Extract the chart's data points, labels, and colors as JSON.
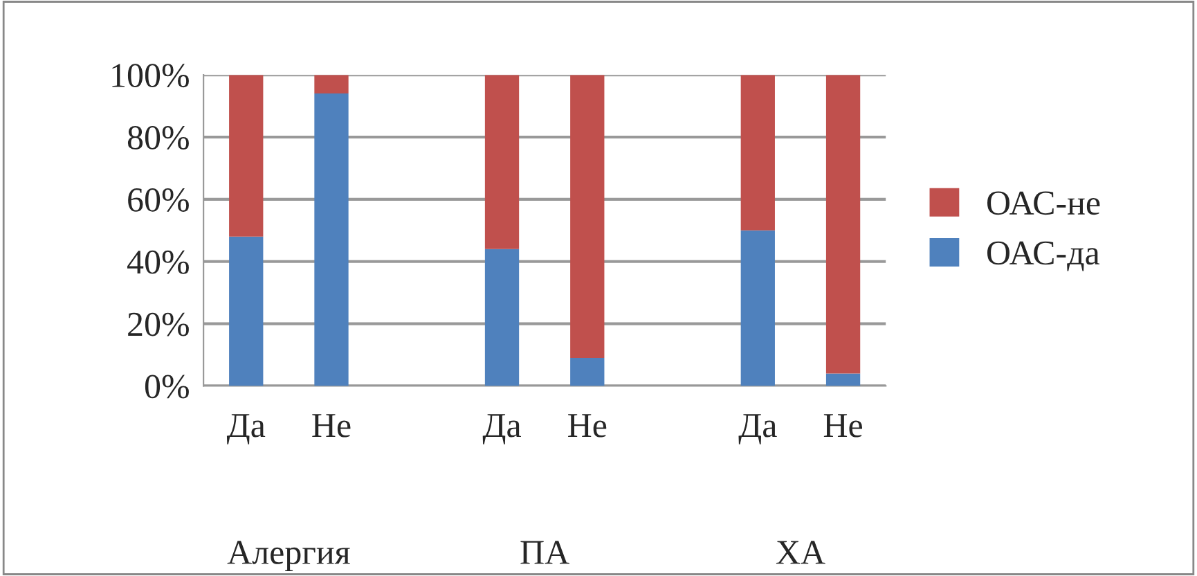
{
  "chart_data": {
    "type": "bar",
    "stacked": true,
    "categories": [
      "Да",
      "Не",
      null,
      "Да",
      "Не",
      null,
      "Да",
      "Не"
    ],
    "series": [
      {
        "name": "ОАС-да",
        "color": "#4f81bd",
        "values": [
          48,
          94,
          null,
          44,
          9,
          null,
          50,
          4
        ]
      },
      {
        "name": "ОАС-не",
        "color": "#c0504d",
        "values": [
          52,
          6,
          null,
          56,
          91,
          null,
          50,
          96
        ]
      }
    ],
    "ylim": [
      0,
      100
    ],
    "yticks": [
      {
        "value": 0,
        "label": "0%"
      },
      {
        "value": 20,
        "label": "20%"
      },
      {
        "value": 40,
        "label": "40%"
      },
      {
        "value": 60,
        "label": "60%"
      },
      {
        "value": 80,
        "label": "80%"
      },
      {
        "value": 100,
        "label": "100%"
      }
    ],
    "grid": "y",
    "legend": "right",
    "annotations": [
      "Алергия",
      "ПА",
      "ХА"
    ]
  }
}
